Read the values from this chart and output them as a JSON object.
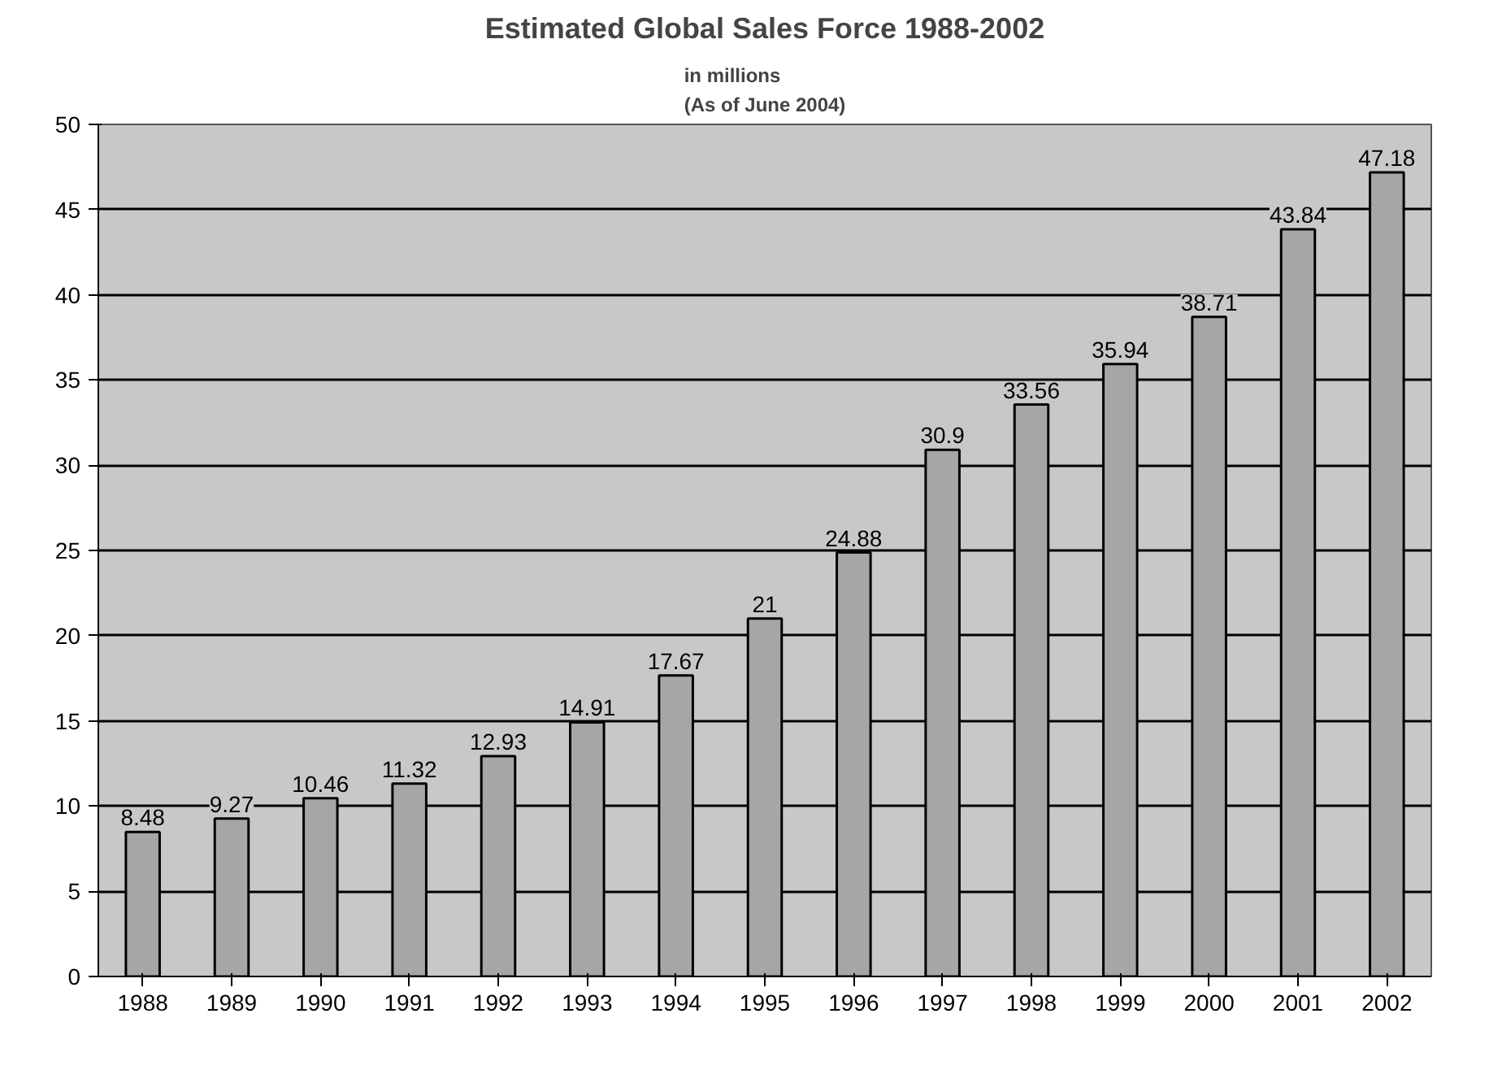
{
  "chart_data": {
    "type": "bar",
    "title": "Estimated Global Sales Force 1988-2002",
    "subtitle": "in millions\n(As of June 2004)",
    "categories": [
      "1988",
      "1989",
      "1990",
      "1991",
      "1992",
      "1993",
      "1994",
      "1995",
      "1996",
      "1997",
      "1998",
      "1999",
      "2000",
      "2001",
      "2002"
    ],
    "values": [
      8.48,
      9.27,
      10.46,
      11.32,
      12.93,
      14.91,
      17.67,
      21,
      24.88,
      30.9,
      33.56,
      35.94,
      38.71,
      43.84,
      47.18
    ],
    "color": "#a6a6a6",
    "ylim": [
      0,
      50
    ],
    "yticks": [
      0,
      5,
      10,
      15,
      20,
      25,
      30,
      35,
      40,
      45,
      50
    ],
    "grid": "y",
    "data_labels": true
  }
}
